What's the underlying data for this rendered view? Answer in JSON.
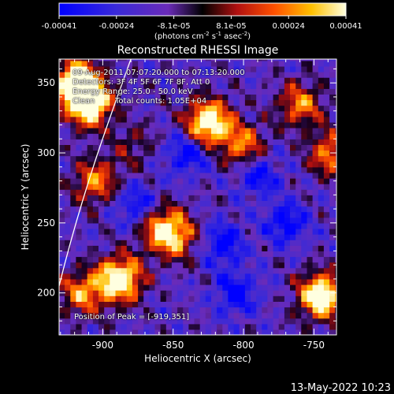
{
  "colorbar": {
    "ticks": [
      "-0.00041",
      "-0.00024",
      "-8.1e-05",
      "8.1e-05",
      "0.00024",
      "0.00041"
    ],
    "units_parts": [
      "(photons cm",
      "-2",
      " s",
      "-1",
      " asec",
      "-2",
      ")"
    ],
    "range": [
      -0.00041,
      0.00041
    ]
  },
  "chart_data": {
    "type": "heatmap",
    "title": "Reconstructed RHESSI Image",
    "xlabel": "Heliocentric X (arcsec)",
    "ylabel": "Heliocentric Y (arcsec)",
    "xlim": [
      -931,
      -734
    ],
    "ylim": [
      170,
      367
    ],
    "xticks": [
      -900,
      -850,
      -800,
      -750
    ],
    "yticks": [
      200,
      250,
      300,
      350
    ],
    "xtick_labels": [
      "-900",
      "-850",
      "-800",
      "-750"
    ],
    "ytick_labels": [
      "200",
      "250",
      "300",
      "350"
    ],
    "annotations": {
      "time": "09-Aug-2011 07:07:20.000 to 07:13:20.000",
      "detectors": "Detectors: 3F 4F 5F 6F 7F 8F, Att 0",
      "energy": "Energy Range: 25.0 - 50.0 keV",
      "clean": "Clean",
      "counts": "Total counts: 1.05E+04",
      "peak": "Position of Peak = [-919,351]"
    },
    "peak_position": [
      -919,
      351
    ],
    "bright_regions": [
      {
        "x": -910,
        "y": 335,
        "value": 0.00041
      },
      {
        "x": -918,
        "y": 351,
        "value": 0.00041
      },
      {
        "x": -905,
        "y": 280,
        "value": 0.00024
      },
      {
        "x": -888,
        "y": 210,
        "value": 0.00041
      },
      {
        "x": -915,
        "y": 200,
        "value": 0.00024
      },
      {
        "x": -860,
        "y": 248,
        "value": 0.00024
      },
      {
        "x": -848,
        "y": 240,
        "value": 0.00024
      },
      {
        "x": -825,
        "y": 322,
        "value": 0.00041
      },
      {
        "x": -800,
        "y": 305,
        "value": 0.00024
      },
      {
        "x": -760,
        "y": 335,
        "value": 0.00024
      },
      {
        "x": -738,
        "y": 300,
        "value": 0.00024
      },
      {
        "x": -745,
        "y": 198,
        "value": 0.00041
      },
      {
        "x": -878,
        "y": 305,
        "value": 0.0001
      }
    ],
    "dark_regions": [
      {
        "x": -790,
        "y": 285,
        "value": -0.00024
      },
      {
        "x": -815,
        "y": 235,
        "value": -0.00024
      },
      {
        "x": -875,
        "y": 262,
        "value": -0.00024
      },
      {
        "x": -805,
        "y": 200,
        "value": -0.00024
      },
      {
        "x": -770,
        "y": 250,
        "value": -0.00024
      },
      {
        "x": -840,
        "y": 300,
        "value": -0.00024
      }
    ],
    "limb_curve": [
      [
        -931,
        205
      ],
      [
        -915,
        270
      ],
      [
        -897,
        320
      ],
      [
        -880,
        367
      ]
    ],
    "limb_color": "#ffffff"
  },
  "footer": {
    "date": "13-May-2022 10:23"
  }
}
